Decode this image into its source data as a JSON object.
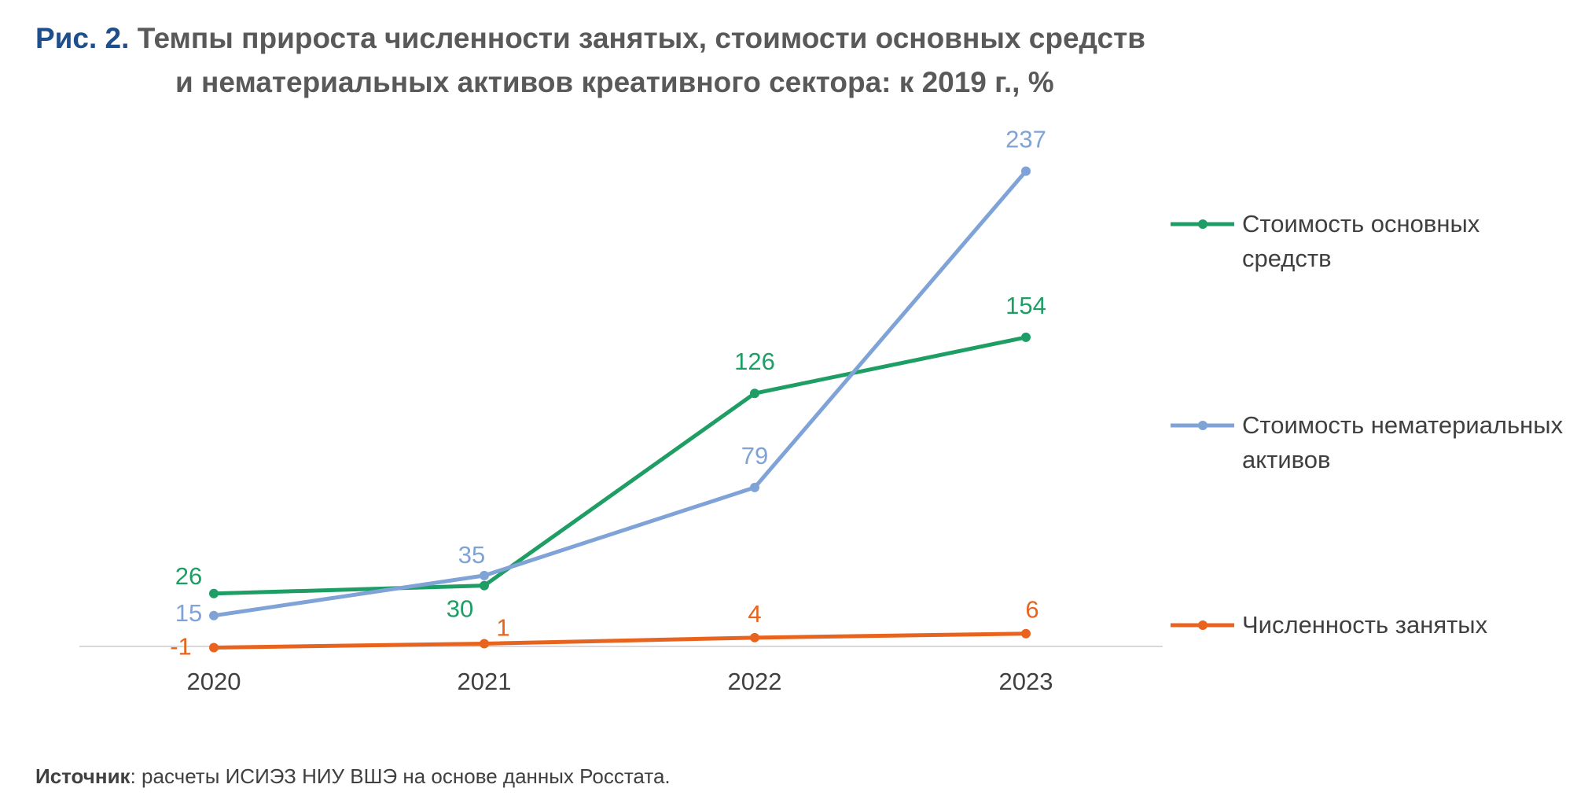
{
  "title": {
    "figure_label": "Рис. 2.",
    "line1": "Темпы прироста численности занятых, стоимости основных средств",
    "line2": "и нематериальных активов креативного сектора: к 2019 г., %"
  },
  "source": {
    "label": "Источник",
    "text": ": расчеты ИСИЭЗ НИУ ВШЭ на основе данных Росстата."
  },
  "chart_data": {
    "type": "line",
    "title": "Темпы прироста численности занятых, стоимости основных средств и нематериальных активов креативного сектора: к 2019 г., %",
    "xlabel": "",
    "ylabel": "",
    "categories": [
      "2020",
      "2021",
      "2022",
      "2023"
    ],
    "ylim": [
      -1,
      237
    ],
    "grid": false,
    "legend_position": "right",
    "series": [
      {
        "name": "Стоимость основных средств",
        "color": "#1e9e64",
        "values": [
          26,
          30,
          126,
          154
        ]
      },
      {
        "name": "Стоимость нематериальных активов",
        "color": "#7fa3d6",
        "values": [
          15,
          35,
          79,
          237
        ]
      },
      {
        "name": "Численность занятых",
        "color": "#e8641e",
        "values": [
          -1,
          1,
          4,
          6
        ]
      }
    ]
  }
}
